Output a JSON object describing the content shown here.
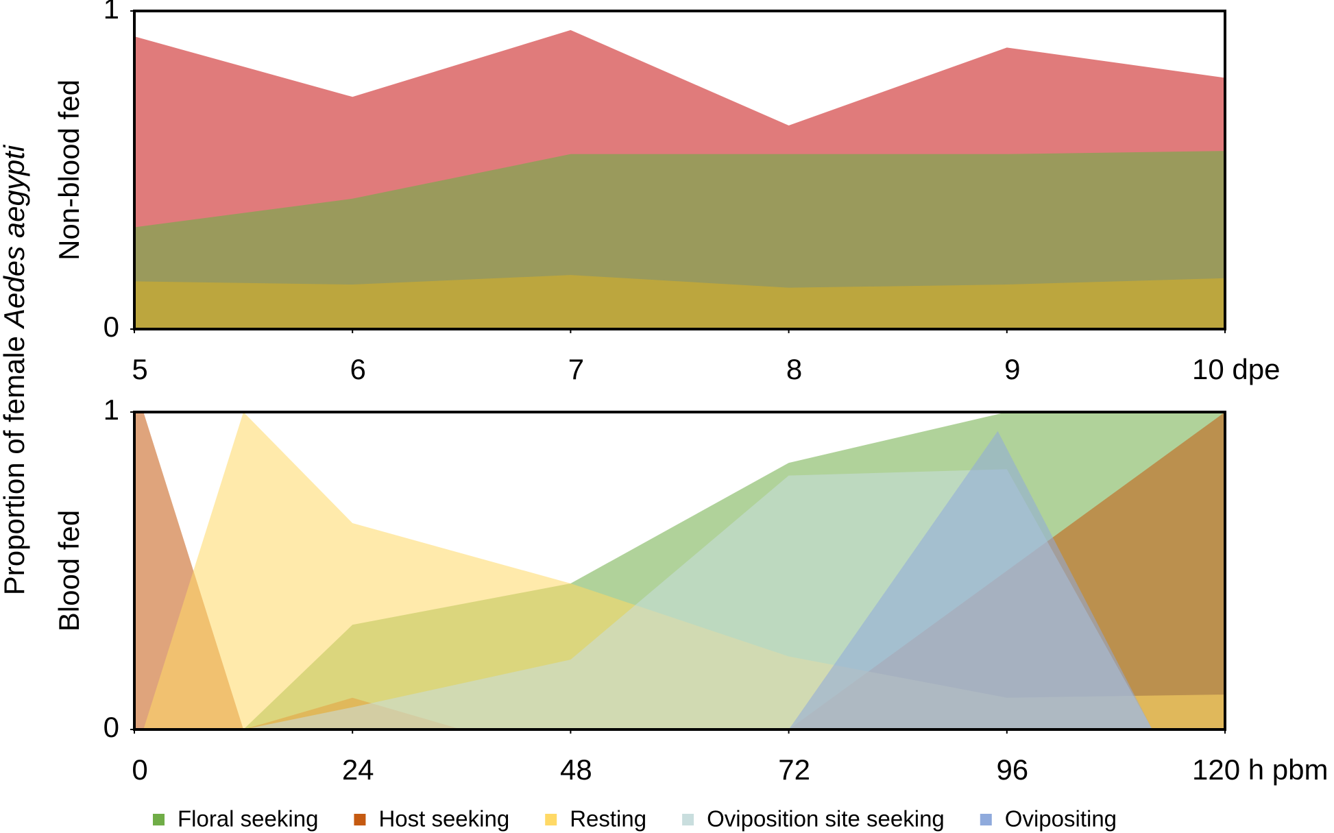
{
  "shared_ylabel": {
    "text": "Proportion of female",
    "italic": "Aedes aegypti"
  },
  "chart_data": [
    {
      "type": "area",
      "ylabel": "Non-blood fed",
      "area_opacity": 1,
      "x": [
        5,
        6,
        7,
        8,
        9,
        10
      ],
      "xlim": [
        5,
        10
      ],
      "xticks": [
        5,
        6,
        7,
        8,
        9,
        {
          "value": 10,
          "label": "10 dpe"
        }
      ],
      "ylim": [
        0,
        1
      ],
      "yticks": [
        0,
        1
      ],
      "series": [
        {
          "color": "#e07b7b",
          "values": [
            0.92,
            0.73,
            0.94,
            0.64,
            0.885,
            0.79
          ]
        },
        {
          "color": "#9a9a5c",
          "values": [
            0.32,
            0.41,
            0.55,
            0.55,
            0.55,
            0.56
          ]
        },
        {
          "color": "#bca63e",
          "values": [
            0.15,
            0.14,
            0.17,
            0.13,
            0.14,
            0.16
          ]
        }
      ]
    },
    {
      "type": "area",
      "ylabel": "Blood fed",
      "area_opacity": 0.55,
      "legend": true,
      "xlim": [
        0,
        120
      ],
      "xticks": [
        0,
        24,
        48,
        72,
        96,
        {
          "value": 120,
          "label": "120 h pbm"
        }
      ],
      "ylim": [
        0,
        1
      ],
      "yticks": [
        0,
        1
      ],
      "series": [
        {
          "name": "Floral seeking",
          "color": "#70ad47",
          "x": [
            12,
            24,
            48,
            72,
            96,
            120
          ],
          "values": [
            0,
            0.33,
            0.46,
            0.84,
            1,
            1
          ]
        },
        {
          "name": "Host seeking",
          "color": "#c55a11",
          "x": [
            0,
            1,
            12,
            24,
            36,
            72,
            120
          ],
          "values": [
            1,
            1,
            0,
            0.1,
            0,
            0,
            1
          ]
        },
        {
          "name": "Resting",
          "color": "#ffd966",
          "x": [
            1,
            12,
            24,
            48,
            72,
            96,
            120
          ],
          "values": [
            0,
            1,
            0.65,
            0.46,
            0.23,
            0.1,
            0.11
          ]
        },
        {
          "name": "Oviposition site seeking",
          "color": "#c9dede",
          "x": [
            12,
            24,
            48,
            72,
            96,
            112
          ],
          "values": [
            0,
            0.07,
            0.22,
            0.8,
            0.82,
            0
          ]
        },
        {
          "name": "Ovipositing",
          "color": "#8faadc",
          "x": [
            72,
            95,
            112
          ],
          "values": [
            0,
            0.94,
            0
          ]
        }
      ]
    }
  ]
}
